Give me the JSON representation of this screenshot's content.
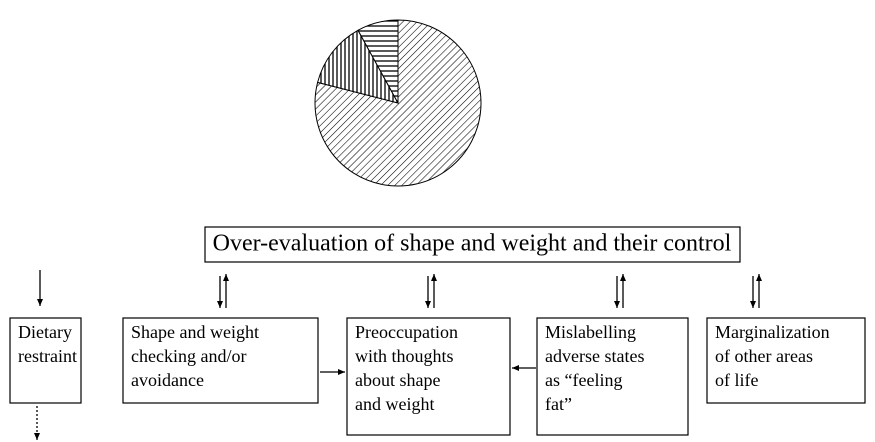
{
  "pie": {
    "values": [
      79,
      13,
      8
    ]
  },
  "title": "Over-evaluation of shape and weight and their control",
  "boxes": [
    {
      "lines": [
        "Dietary",
        "restraint"
      ]
    },
    {
      "lines": [
        "Shape and weight",
        "checking and/or",
        "avoidance"
      ]
    },
    {
      "lines": [
        "Preoccupation",
        "with thoughts",
        "about shape",
        "and weight"
      ]
    },
    {
      "lines": [
        "Mislabelling",
        "adverse states",
        "as “feeling",
        "fat”"
      ]
    },
    {
      "lines": [
        "Marginalization",
        "of other areas",
        "of life"
      ]
    }
  ]
}
